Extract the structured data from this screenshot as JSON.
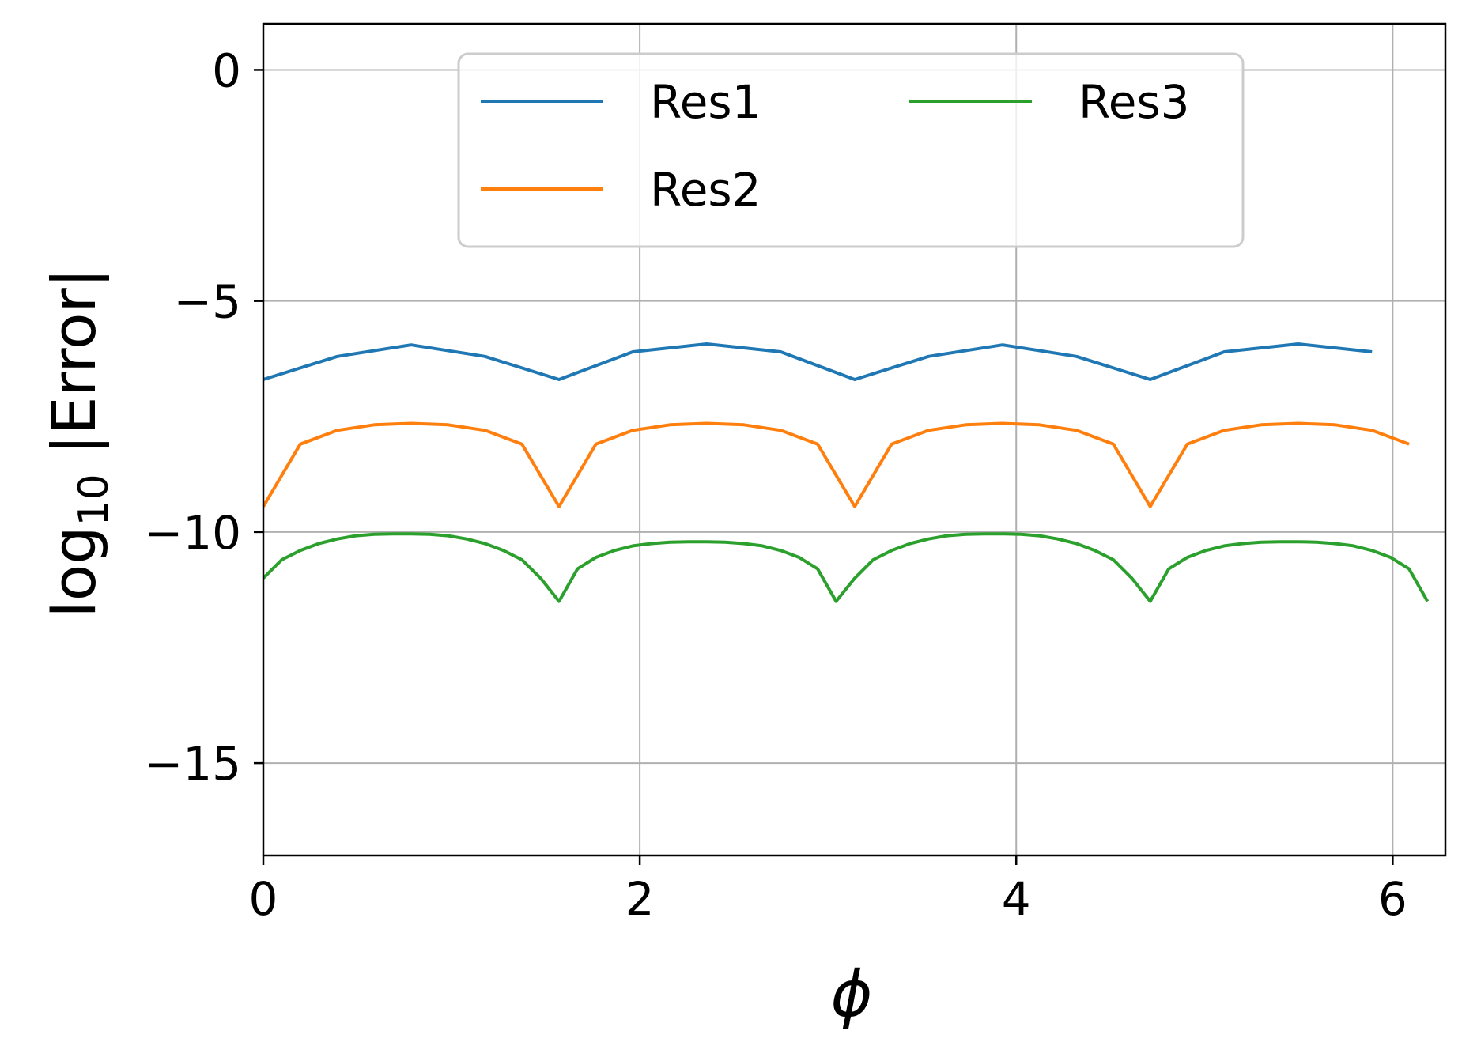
{
  "chart_data": {
    "type": "line",
    "xlabel": "ϕ",
    "ylabel_main": "log",
    "ylabel_sub": "10",
    "ylabel_rest": " |Error|",
    "xlim": [
      0,
      6.28
    ],
    "ylim": [
      -17,
      1
    ],
    "xticks": [
      0,
      2,
      4,
      6
    ],
    "xtick_labels": [
      "0",
      "2",
      "4",
      "6"
    ],
    "yticks": [
      0,
      -5,
      -10,
      -15
    ],
    "ytick_labels": [
      "0",
      "−5",
      "−10",
      "−15"
    ],
    "grid": true,
    "legend": {
      "placement": "top-center",
      "columns": 2
    },
    "series": [
      {
        "name": "Res1",
        "color": "#1f77b4",
        "x": [
          0,
          0.393,
          0.785,
          1.178,
          1.571,
          1.963,
          2.356,
          2.749,
          3.142,
          3.534,
          3.927,
          4.32,
          4.712,
          5.105,
          5.498,
          5.89
        ],
        "y": [
          -6.7,
          -6.2,
          -5.95,
          -6.2,
          -6.7,
          -6.1,
          -5.93,
          -6.1,
          -6.7,
          -6.2,
          -5.95,
          -6.2,
          -6.7,
          -6.1,
          -5.93,
          -6.1
        ]
      },
      {
        "name": "Res2",
        "color": "#ff7f0e",
        "x": [
          0,
          0.196,
          0.393,
          0.589,
          0.785,
          0.982,
          1.178,
          1.374,
          1.571,
          1.767,
          1.963,
          2.16,
          2.356,
          2.553,
          2.749,
          2.945,
          3.142,
          3.338,
          3.534,
          3.731,
          3.927,
          4.123,
          4.32,
          4.516,
          4.712,
          4.909,
          5.105,
          5.301,
          5.498,
          5.694,
          5.89,
          6.087
        ],
        "y": [
          -9.45,
          -8.1,
          -7.8,
          -7.68,
          -7.65,
          -7.68,
          -7.8,
          -8.1,
          -9.45,
          -8.1,
          -7.8,
          -7.68,
          -7.65,
          -7.68,
          -7.8,
          -8.1,
          -9.45,
          -8.1,
          -7.8,
          -7.68,
          -7.65,
          -7.68,
          -7.8,
          -8.1,
          -9.45,
          -8.1,
          -7.8,
          -7.68,
          -7.65,
          -7.68,
          -7.8,
          -8.1
        ]
      },
      {
        "name": "Res3",
        "color": "#2ca02c",
        "x": [
          0,
          0.098,
          0.196,
          0.295,
          0.393,
          0.491,
          0.589,
          0.687,
          0.785,
          0.884,
          0.982,
          1.08,
          1.178,
          1.276,
          1.374,
          1.473,
          1.571,
          1.669,
          1.767,
          1.865,
          1.963,
          2.062,
          2.16,
          2.258,
          2.356,
          2.454,
          2.553,
          2.651,
          2.749,
          2.847,
          2.945,
          3.043,
          3.142,
          3.24,
          3.338,
          3.436,
          3.534,
          3.632,
          3.731,
          3.829,
          3.927,
          4.025,
          4.123,
          4.221,
          4.32,
          4.418,
          4.516,
          4.614,
          4.712,
          4.81,
          4.909,
          5.007,
          5.105,
          5.203,
          5.301,
          5.4,
          5.498,
          5.596,
          5.694,
          5.792,
          5.89,
          5.989,
          6.087,
          6.185
        ],
        "y": [
          -11.0,
          -10.6,
          -10.4,
          -10.25,
          -10.15,
          -10.08,
          -10.05,
          -10.04,
          -10.04,
          -10.05,
          -10.08,
          -10.15,
          -10.25,
          -10.4,
          -10.6,
          -11.0,
          -11.5,
          -10.8,
          -10.55,
          -10.4,
          -10.3,
          -10.25,
          -10.22,
          -10.21,
          -10.21,
          -10.22,
          -10.25,
          -10.3,
          -10.4,
          -10.55,
          -10.8,
          -11.5,
          -11.0,
          -10.6,
          -10.4,
          -10.25,
          -10.15,
          -10.08,
          -10.05,
          -10.04,
          -10.04,
          -10.05,
          -10.08,
          -10.15,
          -10.25,
          -10.4,
          -10.6,
          -11.0,
          -11.5,
          -10.8,
          -10.55,
          -10.4,
          -10.3,
          -10.25,
          -10.22,
          -10.21,
          -10.21,
          -10.22,
          -10.25,
          -10.3,
          -10.4,
          -10.55,
          -10.8,
          -11.5
        ]
      }
    ]
  }
}
